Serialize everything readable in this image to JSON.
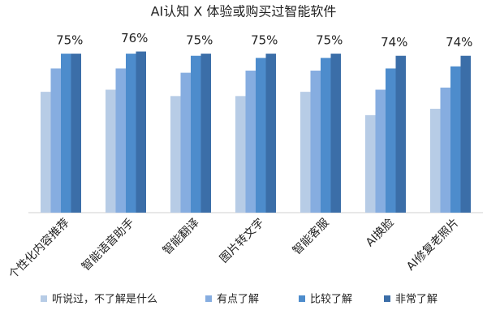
{
  "chart_data": {
    "type": "bar",
    "title": "AI认知 X 体验或购买过智能软件",
    "categories": [
      "个性化内容推荐",
      "智能语音助手",
      "智能翻译",
      "图片转文字",
      "智能客服",
      "AI换脸",
      "AI修复老照片"
    ],
    "ylim": [
      0,
      85
    ],
    "series": [
      {
        "name": "听说过，不了解是什么",
        "color": "#b7cce6",
        "values": [
          57,
          58,
          55,
          55,
          57,
          46,
          49
        ]
      },
      {
        "name": "有点了解",
        "color": "#86ade0",
        "values": [
          68,
          68,
          66,
          67,
          67,
          58,
          59
        ]
      },
      {
        "name": "比较了解",
        "color": "#4d8ccc",
        "values": [
          75,
          75,
          74,
          73,
          73,
          68,
          69
        ]
      },
      {
        "name": "非常了解",
        "color": "#3b6ea8",
        "values": [
          75,
          76,
          75,
          75,
          75,
          74,
          74
        ],
        "value_labels": [
          "75%",
          "76%",
          "75%",
          "75%",
          "75%",
          "74%",
          "74%"
        ]
      }
    ],
    "legend": "bottom"
  }
}
